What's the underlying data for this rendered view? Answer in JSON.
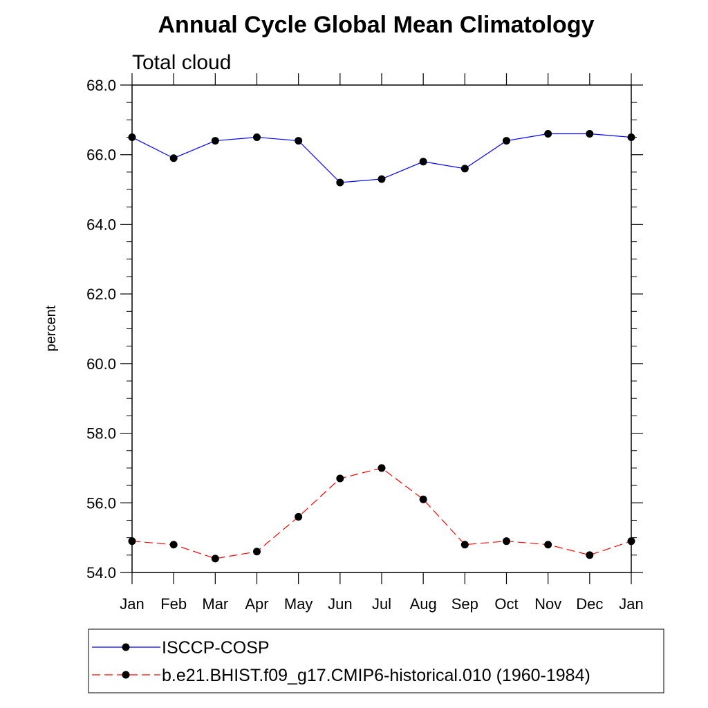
{
  "chart_data": {
    "type": "line",
    "title": "Annual Cycle Global Mean Climatology",
    "subtitle": "Total cloud",
    "xlabel": "",
    "ylabel": "percent",
    "categories": [
      "Jan",
      "Feb",
      "Mar",
      "Apr",
      "May",
      "Jun",
      "Jul",
      "Aug",
      "Sep",
      "Oct",
      "Nov",
      "Dec",
      "Jan"
    ],
    "ylim": [
      54.0,
      68.0
    ],
    "yticks": [
      "54.0",
      "56.0",
      "58.0",
      "60.0",
      "62.0",
      "64.0",
      "66.0",
      "68.0"
    ],
    "grid": false,
    "legend_position": "bottom",
    "series": [
      {
        "name": "ISCCP-COSP",
        "color": "#0000ff",
        "dash": "solid",
        "marker": "filled-circle",
        "values": [
          66.5,
          65.9,
          66.4,
          66.5,
          66.4,
          65.2,
          65.3,
          65.8,
          65.6,
          66.4,
          66.6,
          66.6,
          66.5
        ]
      },
      {
        "name": "b.e21.BHIST.f09_g17.CMIP6-historical.010 (1960-1984)",
        "color": "#ff0000",
        "dash": "dashed",
        "marker": "filled-circle",
        "values": [
          54.9,
          54.8,
          54.4,
          54.6,
          55.6,
          56.7,
          57.0,
          56.1,
          54.8,
          54.9,
          54.8,
          54.5,
          54.9
        ]
      }
    ]
  }
}
